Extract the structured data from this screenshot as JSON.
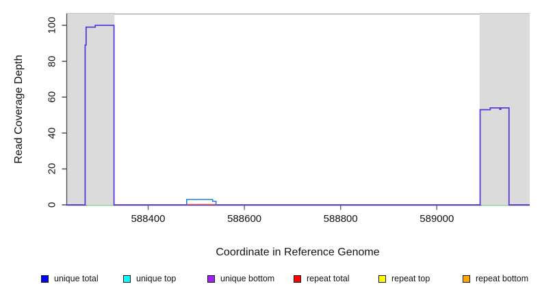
{
  "figure": {
    "x_title": "Coordinate in Reference Genome",
    "y_title": "Read Coverage Depth"
  },
  "legend": {
    "items": [
      {
        "label": "unique total",
        "color": "#0000ff"
      },
      {
        "label": "unique top",
        "color": "#00ffff"
      },
      {
        "label": "unique bottom",
        "color": "#a020f0"
      },
      {
        "label": "repeat total",
        "color": "#ff0000"
      },
      {
        "label": "repeat top",
        "color": "#ffff00"
      },
      {
        "label": "repeat bottom",
        "color": "#ffa500"
      }
    ]
  },
  "chart_data": {
    "type": "line",
    "title": "",
    "xlabel": "Coordinate in Reference Genome",
    "ylabel": "Read Coverage Depth",
    "xlim": [
      588230,
      589193
    ],
    "ylim": [
      0,
      106.5
    ],
    "grid": false,
    "legend_position": "bottom",
    "x_ticks": [
      {
        "label": "588400",
        "value": 588400
      },
      {
        "label": "588600",
        "value": 588600
      },
      {
        "label": "588800",
        "value": 588800
      },
      {
        "label": "589000",
        "value": 589000
      }
    ],
    "y_ticks": [
      {
        "label": "0",
        "value": 0
      },
      {
        "label": "20",
        "value": 20
      },
      {
        "label": "40",
        "value": 40
      },
      {
        "label": "60",
        "value": 60
      },
      {
        "label": "80",
        "value": 80
      },
      {
        "label": "100",
        "value": 100
      }
    ],
    "shaded_regions": [
      {
        "name": "left-shaded-region",
        "from": 588230,
        "to": 588330,
        "color": "#dbdbdb"
      },
      {
        "name": "right-shaded-region",
        "from": 589089,
        "to": 589193,
        "color": "#dbdbdb"
      }
    ],
    "series": [
      {
        "name": "strand-coverage-at-zero (green baseline under peaks)",
        "color": "#8fd98f",
        "width": 1.4,
        "mode": "flat",
        "segments": [
          {
            "from": 588272,
            "to": 588328,
            "depth": -0.3
          },
          {
            "from": 589093,
            "to": 589149,
            "depth": -0.3
          }
        ]
      },
      {
        "name": "unique total / unique bottom coverage",
        "color": "#5b35dd",
        "width": 1.8,
        "mode": "steps",
        "segments": [
          {
            "from": 588230,
            "to": 588269,
            "depth": 0
          },
          {
            "from": 588269,
            "to": 588271,
            "depth": 89
          },
          {
            "from": 588271,
            "to": 588290,
            "depth": 99
          },
          {
            "from": 588290,
            "to": 588329,
            "depth": 100
          },
          {
            "from": 588329,
            "to": 589090,
            "depth": 0
          },
          {
            "from": 589090,
            "to": 589111,
            "depth": 53
          },
          {
            "from": 589111,
            "to": 589131,
            "depth": 54
          },
          {
            "from": 589131,
            "to": 589133,
            "depth": 53.2
          },
          {
            "from": 589133,
            "to": 589150,
            "depth": 54
          },
          {
            "from": 589150,
            "to": 589193,
            "depth": 0
          }
        ]
      },
      {
        "name": "repeat total coverage",
        "color": "#ee4d5a",
        "width": 1.4,
        "mode": "flat",
        "segments": [
          {
            "from": 588480,
            "to": 588541,
            "depth": 0.2
          }
        ]
      },
      {
        "name": "unique top coverage bump",
        "color": "#1d7fd6",
        "width": 1.6,
        "mode": "steps",
        "segments": [
          {
            "from": 588480,
            "to": 588534,
            "depth": 3
          },
          {
            "from": 588534,
            "to": 588541,
            "depth": 2
          }
        ]
      }
    ]
  }
}
